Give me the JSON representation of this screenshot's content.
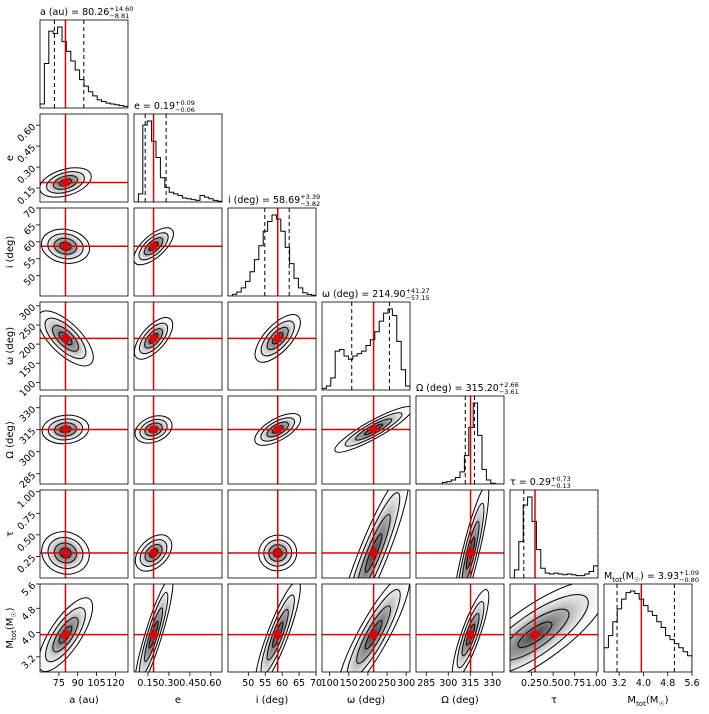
{
  "chart_data": {
    "type": "corner",
    "parameters": [
      {
        "key": "a",
        "label": "a (au)",
        "title_name": "a (au)",
        "median": 80.26,
        "plus": 14.6,
        "minus": 8.81,
        "range": [
          60,
          130
        ],
        "ticks": [
          75,
          90,
          105,
          120
        ],
        "tick_labels": [
          "75",
          "90",
          "105",
          "120"
        ],
        "truth": 80.26
      },
      {
        "key": "e",
        "label": "e",
        "title_name": "e",
        "median": 0.19,
        "plus": 0.09,
        "minus": 0.06,
        "range": [
          0.05,
          0.68
        ],
        "ticks": [
          0.15,
          0.3,
          0.45,
          0.6
        ],
        "tick_labels": [
          "0.15",
          "0.30",
          "0.45",
          "0.60"
        ],
        "truth": 0.19
      },
      {
        "key": "i",
        "label": "i (deg)",
        "title_name": "i (deg)",
        "median": 58.69,
        "plus": 3.39,
        "minus": 3.82,
        "range": [
          44,
          70
        ],
        "ticks": [
          50,
          55,
          60,
          65,
          70
        ],
        "tick_labels": [
          "50",
          "55",
          "60",
          "65",
          "70"
        ],
        "truth": 58.69
      },
      {
        "key": "omega",
        "label": "ω (deg)",
        "title_name": "ω (deg)",
        "median": 214.9,
        "plus": 41.27,
        "minus": 57.15,
        "range": [
          80,
          310
        ],
        "ticks": [
          100,
          150,
          200,
          250,
          300
        ],
        "tick_labels": [
          "100",
          "150",
          "200",
          "250",
          "300"
        ],
        "truth": 214.9
      },
      {
        "key": "Omega",
        "label": "Ω (deg)",
        "title_name": "Ω (deg)",
        "median": 315.2,
        "plus": 2.66,
        "minus": 3.61,
        "range": [
          278,
          338
        ],
        "ticks": [
          285,
          300,
          315,
          330
        ],
        "tick_labels": [
          "285",
          "300",
          "315",
          "330"
        ],
        "truth": 315.2
      },
      {
        "key": "tau",
        "label": "τ",
        "title_name": "τ",
        "median": 0.29,
        "plus": 0.73,
        "minus": 0.13,
        "range": [
          0.0,
          1.02
        ],
        "ticks": [
          0.25,
          0.5,
          0.75,
          1.0
        ],
        "tick_labels": [
          "0.25",
          "0.50",
          "0.75",
          "1.00"
        ],
        "truth": 0.29
      },
      {
        "key": "Mtot",
        "label": "M_tot(M_☉)",
        "label_main": "M",
        "label_sub": "tot",
        "label_tail": "(M",
        "label_sun": "☉",
        "label_close": ")",
        "title_name": "Mtot(M☉)",
        "median": 3.93,
        "plus": 1.09,
        "minus": 0.8,
        "range": [
          2.7,
          5.6
        ],
        "ticks": [
          3.2,
          4.0,
          4.8,
          5.6
        ],
        "tick_labels": [
          "3.2",
          "4.0",
          "4.8",
          "5.6"
        ],
        "truth": 3.93
      }
    ],
    "titles": [
      {
        "text": "a (au) = 80.26",
        "sup": "+14.60",
        "sub": "−8.81"
      },
      {
        "text": "e = 0.19",
        "sup": "+0.09",
        "sub": "−0.06"
      },
      {
        "text": "i (deg) = 58.69",
        "sup": "+3.39",
        "sub": "−3.82"
      },
      {
        "text": "ω (deg) = 214.90",
        "sup": "+41.27",
        "sub": "−57.15"
      },
      {
        "text": "Ω (deg) = 315.20",
        "sup": "+2.66",
        "sub": "−3.61"
      },
      {
        "text": "τ = 0.29",
        "sup": "+0.73",
        "sub": "−0.13"
      },
      {
        "text": "M",
        "text_sub": "tot",
        "text_tail": "(M",
        "text_sun": "☉",
        "text_end": ") = 3.93",
        "sup": "+1.09",
        "sub": "−0.80"
      }
    ],
    "histograms": [
      [
        0.05,
        0.55,
        0.95,
        0.92,
        1.0,
        0.82,
        0.7,
        0.58,
        0.47,
        0.35,
        0.27,
        0.2,
        0.15,
        0.1,
        0.08,
        0.06,
        0.05,
        0.04,
        0.03,
        0.02
      ],
      [
        0.0,
        0.1,
        0.95,
        1.0,
        0.75,
        0.55,
        0.3,
        0.18,
        0.12,
        0.1,
        0.08,
        0.05,
        0.04,
        0.03,
        0.02,
        0.08,
        0.06,
        0.04,
        0.02,
        0.01
      ],
      [
        0.0,
        0.02,
        0.05,
        0.1,
        0.18,
        0.3,
        0.45,
        0.62,
        0.8,
        0.92,
        1.0,
        0.95,
        0.8,
        0.6,
        0.4,
        0.22,
        0.1,
        0.04,
        0.02,
        0.01
      ],
      [
        0.02,
        0.05,
        0.15,
        0.48,
        0.5,
        0.42,
        0.38,
        0.42,
        0.45,
        0.48,
        0.55,
        0.62,
        0.72,
        0.85,
        0.95,
        1.0,
        0.92,
        0.6,
        0.25,
        0.05
      ],
      [
        0.0,
        0.0,
        0.0,
        0.0,
        0.0,
        0.0,
        0.02,
        0.03,
        0.05,
        0.08,
        0.15,
        0.35,
        0.7,
        1.0,
        0.6,
        0.18,
        0.05,
        0.01,
        0.0,
        0.0
      ],
      [
        0.0,
        0.1,
        0.45,
        0.9,
        1.0,
        0.7,
        0.35,
        0.12,
        0.06,
        0.05,
        0.06,
        0.05,
        0.04,
        0.05,
        0.04,
        0.03,
        0.03,
        0.05,
        0.08,
        0.15
      ],
      [
        0.3,
        0.45,
        0.62,
        0.78,
        0.9,
        0.98,
        1.0,
        0.97,
        0.9,
        0.82,
        0.75,
        0.7,
        0.62,
        0.55,
        0.45,
        0.4,
        0.35,
        0.3,
        0.25,
        0.2
      ]
    ],
    "correlation": [
      [
        0
      ],
      [
        0.3,
        0
      ],
      [
        -0.15,
        0.55,
        0
      ],
      [
        -0.55,
        0.45,
        0.5,
        0
      ],
      [
        0.1,
        0.3,
        0.5,
        0.75,
        0
      ],
      [
        -0.1,
        0.2,
        0.05,
        0.9,
        0.8,
        0
      ],
      [
        0.55,
        0.85,
        0.8,
        0.85,
        0.7,
        0.65,
        0
      ]
    ],
    "truth_color": "#e00000",
    "contour_levels": [
      0.35,
      0.7,
      1.1,
      1.5
    ]
  }
}
